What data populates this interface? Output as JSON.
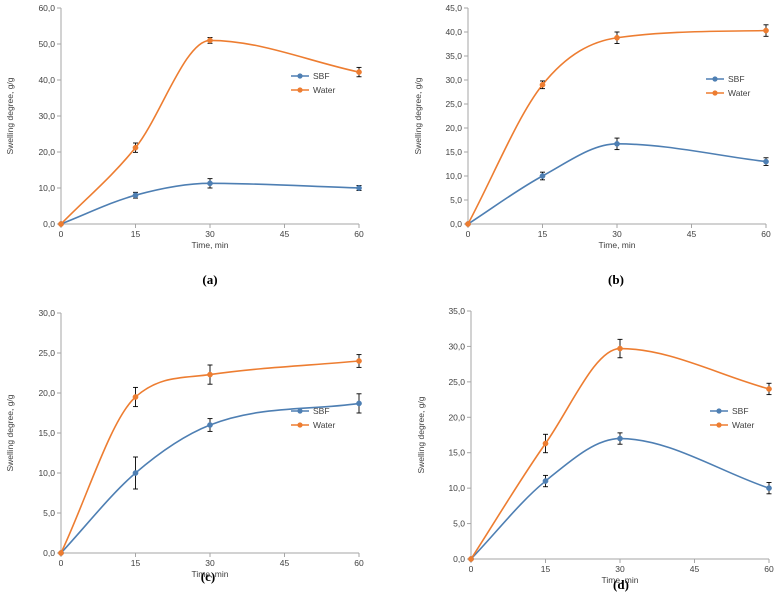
{
  "colors": {
    "sbf": "#4e7fb3",
    "water": "#ed7d31",
    "axis": "#a6a6a6",
    "text": "#404040"
  },
  "chart_data": [
    {
      "type": "line",
      "panel_label": "(a)",
      "xlabel": "Time, min",
      "ylabel": "Swelling degree, g/g",
      "x": [
        0,
        15,
        30,
        60
      ],
      "xlim": [
        0,
        60
      ],
      "xticks": [
        "0",
        "15",
        "30",
        "45",
        "60"
      ],
      "ylim": [
        0,
        60
      ],
      "yticks": [
        "0,0",
        "10,0",
        "20,0",
        "30,0",
        "40,0",
        "50,0",
        "60,0"
      ],
      "legend_position": "right",
      "series": [
        {
          "name": "SBF",
          "values": [
            0,
            8,
            11.3,
            10
          ],
          "errors": [
            0,
            0.8,
            1.3,
            0.7
          ]
        },
        {
          "name": "Water",
          "values": [
            0,
            21.2,
            51,
            42.2
          ],
          "errors": [
            0,
            1.3,
            0.8,
            1.3
          ]
        }
      ]
    },
    {
      "type": "line",
      "panel_label": "(b)",
      "xlabel": "Time, min",
      "ylabel": "Swelling degree, g/g",
      "x": [
        0,
        15,
        30,
        60
      ],
      "xlim": [
        0,
        60
      ],
      "xticks": [
        "0",
        "15",
        "30",
        "45",
        "60"
      ],
      "ylim": [
        0,
        45
      ],
      "yticks": [
        "0,0",
        "5,0",
        "10,0",
        "15,0",
        "20,0",
        "25,0",
        "30,0",
        "35,0",
        "40,0",
        "45,0"
      ],
      "legend_position": "right",
      "series": [
        {
          "name": "SBF",
          "values": [
            0,
            10,
            16.7,
            13
          ],
          "errors": [
            0,
            0.8,
            1.2,
            0.8
          ]
        },
        {
          "name": "Water",
          "values": [
            0,
            29,
            38.8,
            40.3
          ],
          "errors": [
            0,
            0.8,
            1.2,
            1.2
          ]
        }
      ]
    },
    {
      "type": "line",
      "panel_label": "(c)",
      "xlabel": "Time, min",
      "ylabel": "Swelling degree, g/g",
      "x": [
        0,
        15,
        30,
        60
      ],
      "xlim": [
        0,
        60
      ],
      "xticks": [
        "0",
        "15",
        "30",
        "45",
        "60"
      ],
      "ylim": [
        0,
        30
      ],
      "yticks": [
        "0,0",
        "5,0",
        "10,0",
        "15,0",
        "20,0",
        "25,0",
        "30,0"
      ],
      "legend_position": "right",
      "series": [
        {
          "name": "SBF",
          "values": [
            0,
            10,
            16,
            18.7
          ],
          "errors": [
            0,
            2,
            0.8,
            1.2
          ]
        },
        {
          "name": "Water",
          "values": [
            0,
            19.5,
            22.3,
            24
          ],
          "errors": [
            0,
            1.2,
            1.2,
            0.8
          ]
        }
      ]
    },
    {
      "type": "line",
      "panel_label": "(d)",
      "xlabel": "Time, min",
      "ylabel": "Swelling degree, g/g",
      "x": [
        0,
        15,
        30,
        60
      ],
      "xlim": [
        0,
        60
      ],
      "xticks": [
        "0",
        "15",
        "30",
        "45",
        "60"
      ],
      "ylim": [
        0,
        35
      ],
      "yticks": [
        "0,0",
        "5,0",
        "10,0",
        "15,0",
        "20,0",
        "25,0",
        "30,0",
        "35,0"
      ],
      "legend_position": "right",
      "series": [
        {
          "name": "SBF",
          "values": [
            0,
            11,
            17,
            10
          ],
          "errors": [
            0,
            0.8,
            0.8,
            0.8
          ]
        },
        {
          "name": "Water",
          "values": [
            0,
            16.3,
            29.7,
            24
          ],
          "errors": [
            0,
            1.3,
            1.3,
            0.8
          ]
        }
      ]
    }
  ]
}
